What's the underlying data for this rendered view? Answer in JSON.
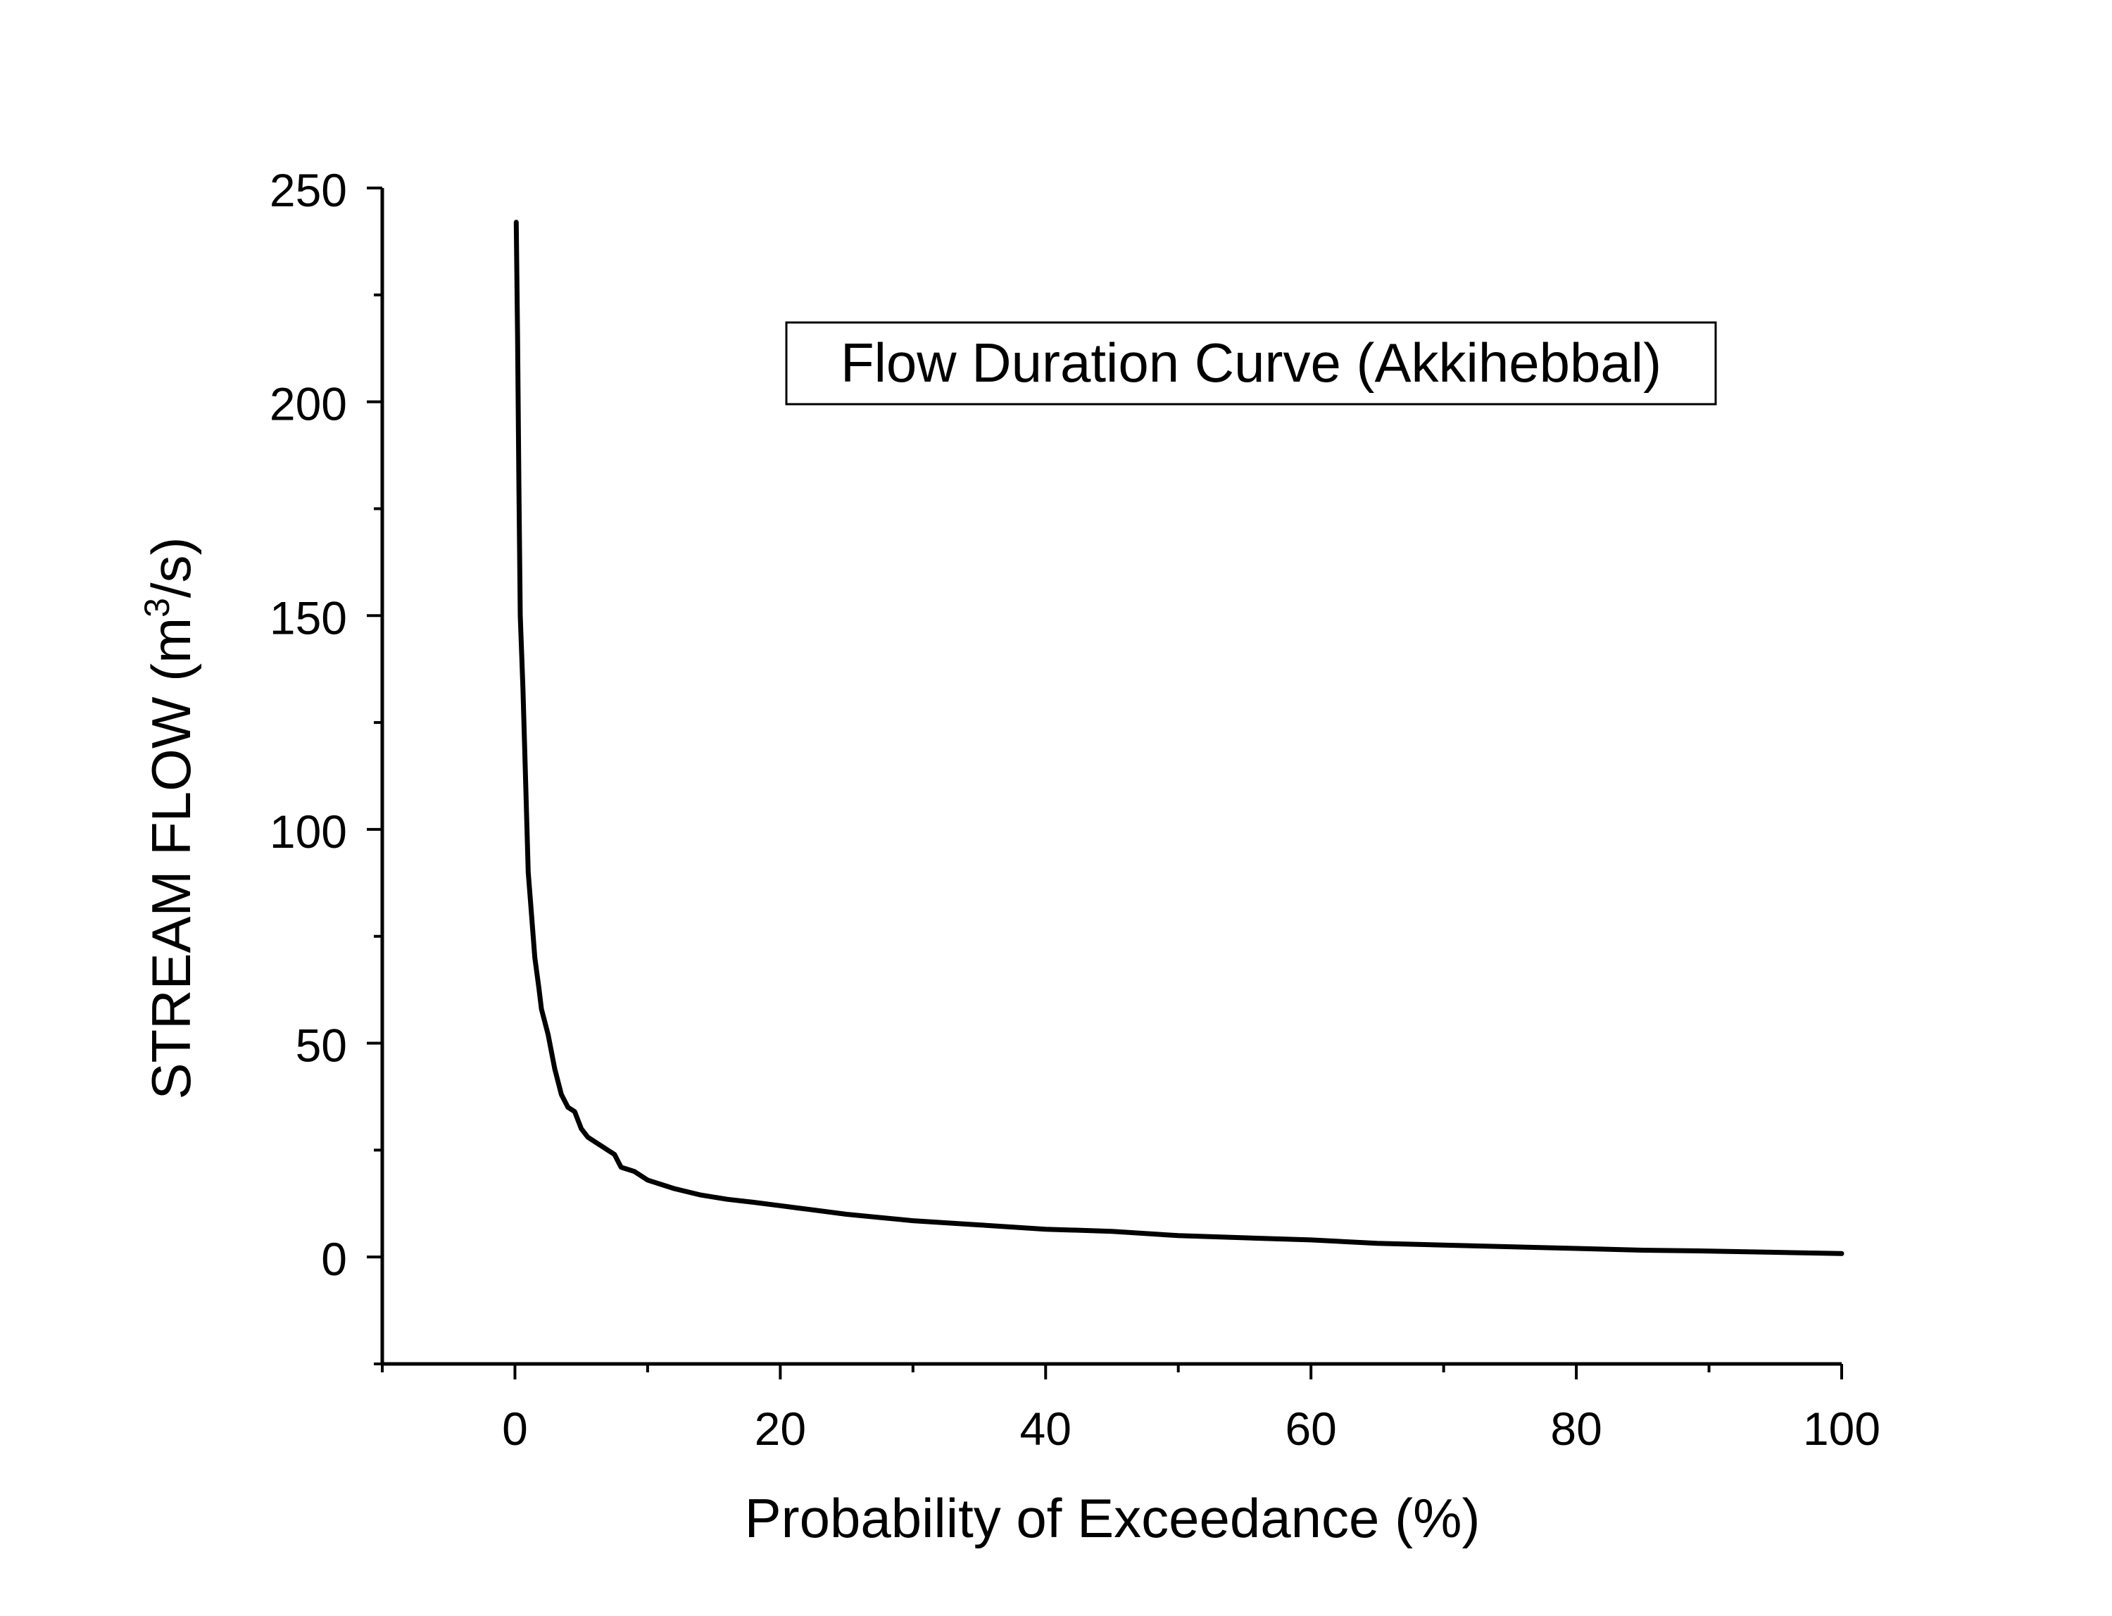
{
  "chart_data": {
    "type": "line",
    "title": "Flow Duration Curve (Akkihebbal)",
    "xlabel": "Probability of Exceedance (%)",
    "ylabel": {
      "prefix": "STREAM FLOW (m",
      "superscript": "3",
      "suffix": "/s)"
    },
    "xlim": [
      -10,
      100
    ],
    "ylim": [
      -25,
      250
    ],
    "x_ticks": [
      0,
      20,
      40,
      60,
      80,
      100
    ],
    "y_ticks": [
      0,
      50,
      100,
      150,
      200,
      250
    ],
    "x_tick_labels": [
      "0",
      "20",
      "40",
      "60",
      "80",
      "100"
    ],
    "y_tick_labels": [
      "0",
      "50",
      "100",
      "150",
      "200",
      "250"
    ],
    "grid": false,
    "legend": "none",
    "series": [
      {
        "name": "Flow Duration Curve (Akkihebbal)",
        "color": "#000000",
        "x": [
          0.1,
          0.2,
          0.3,
          0.4,
          0.6,
          0.8,
          1.0,
          1.2,
          1.5,
          1.8,
          2.0,
          2.5,
          3.0,
          3.5,
          4.0,
          4.5,
          5.0,
          5.5,
          6.0,
          6.5,
          7.0,
          7.5,
          8.0,
          9.0,
          10.0,
          12.0,
          14.0,
          16.0,
          18.0,
          20.0,
          25.0,
          30.0,
          35.0,
          40.0,
          45.0,
          50.0,
          55.0,
          60.0,
          65.0,
          70.0,
          75.0,
          80.0,
          85.0,
          90.0,
          95.0,
          100.0
        ],
        "y": [
          242,
          215,
          180,
          150,
          133,
          112,
          90,
          82,
          70,
          63,
          58,
          52,
          44,
          38,
          35,
          34,
          30,
          28,
          27,
          26,
          25,
          24,
          21,
          20,
          18,
          16,
          14.5,
          13.5,
          12.8,
          12,
          10,
          8.5,
          7.5,
          6.5,
          6,
          5,
          4.5,
          4,
          3.2,
          2.8,
          2.4,
          2,
          1.6,
          1.4,
          1.1,
          0.8
        ]
      }
    ]
  }
}
